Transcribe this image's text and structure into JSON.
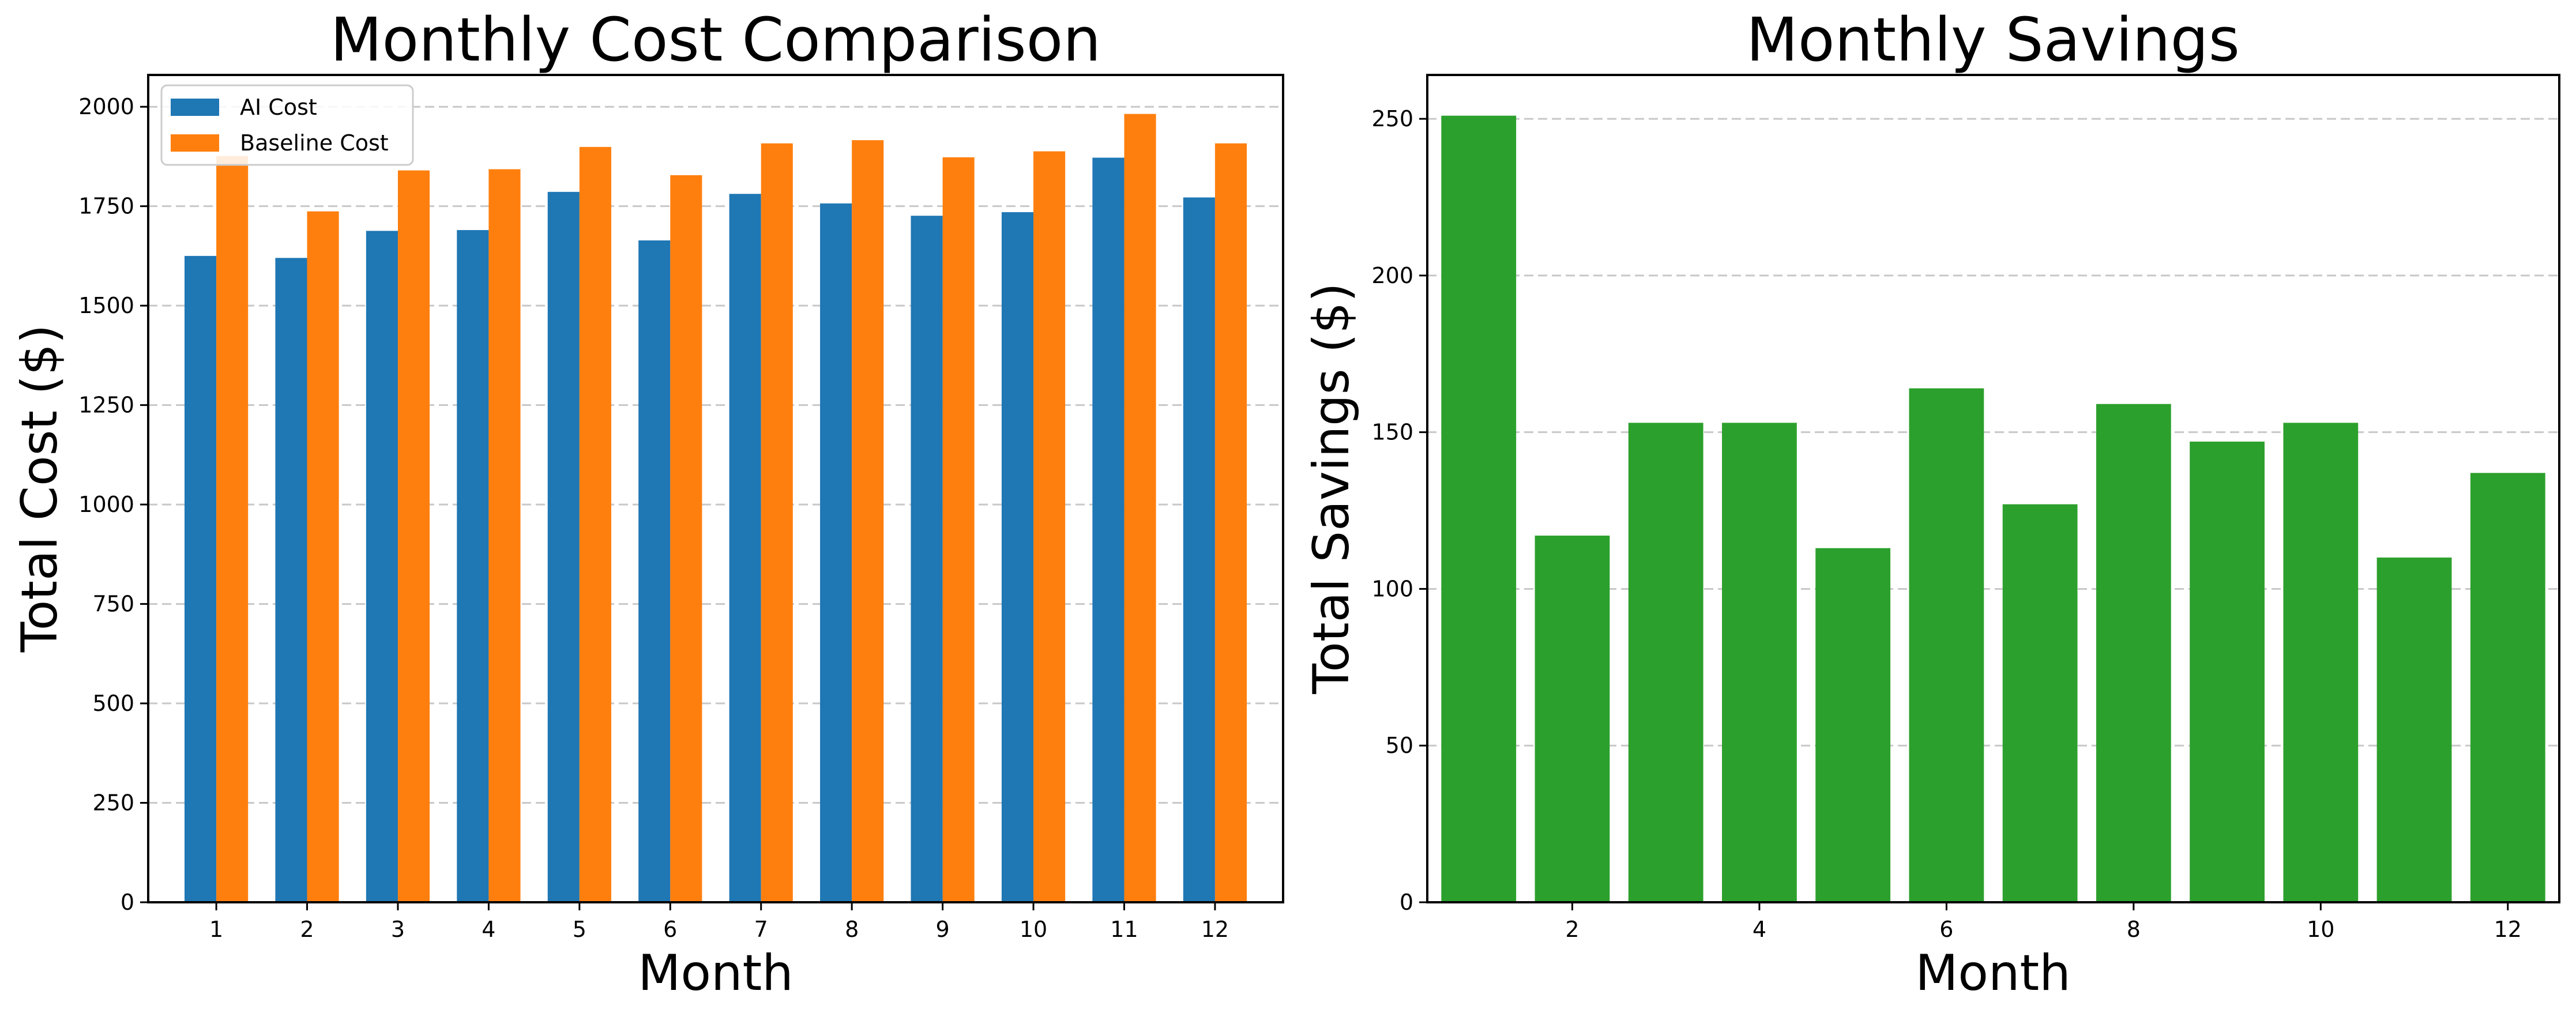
{
  "chart_data": [
    {
      "type": "bar",
      "title": "Monthly Cost Comparison",
      "xlabel": "Month",
      "ylabel": "Total Cost ($)",
      "categories": [
        "1",
        "2",
        "3",
        "4",
        "5",
        "6",
        "7",
        "8",
        "9",
        "10",
        "11",
        "12"
      ],
      "series": [
        {
          "name": "AI Cost",
          "color": "#1f77b4",
          "values": [
            1625,
            1620,
            1688,
            1690,
            1786,
            1664,
            1781,
            1757,
            1726,
            1735,
            1872,
            1772
          ]
        },
        {
          "name": "Baseline Cost",
          "color": "#ff7f0e",
          "values": [
            1876,
            1737,
            1840,
            1843,
            1899,
            1828,
            1908,
            1916,
            1873,
            1888,
            1982,
            1908
          ]
        }
      ],
      "ylim": [
        0,
        2080
      ],
      "yticks": [
        0,
        250,
        500,
        750,
        1000,
        1250,
        1500,
        1750,
        2000
      ],
      "grid": "y",
      "legend": "upper-left"
    },
    {
      "type": "bar",
      "title": "Monthly Savings",
      "xlabel": "Month",
      "ylabel": "Total Savings ($)",
      "x": [
        1,
        2,
        3,
        4,
        5,
        6,
        7,
        8,
        9,
        10,
        11,
        12
      ],
      "values": [
        251,
        117,
        153,
        153,
        113,
        164,
        127,
        159,
        147,
        153,
        110,
        137
      ],
      "color": "#2ca02c",
      "xticks": [
        2,
        4,
        6,
        8,
        10,
        12
      ],
      "ylim": [
        0,
        264
      ],
      "yticks": [
        0,
        50,
        100,
        150,
        200,
        250
      ],
      "grid": "y"
    }
  ]
}
